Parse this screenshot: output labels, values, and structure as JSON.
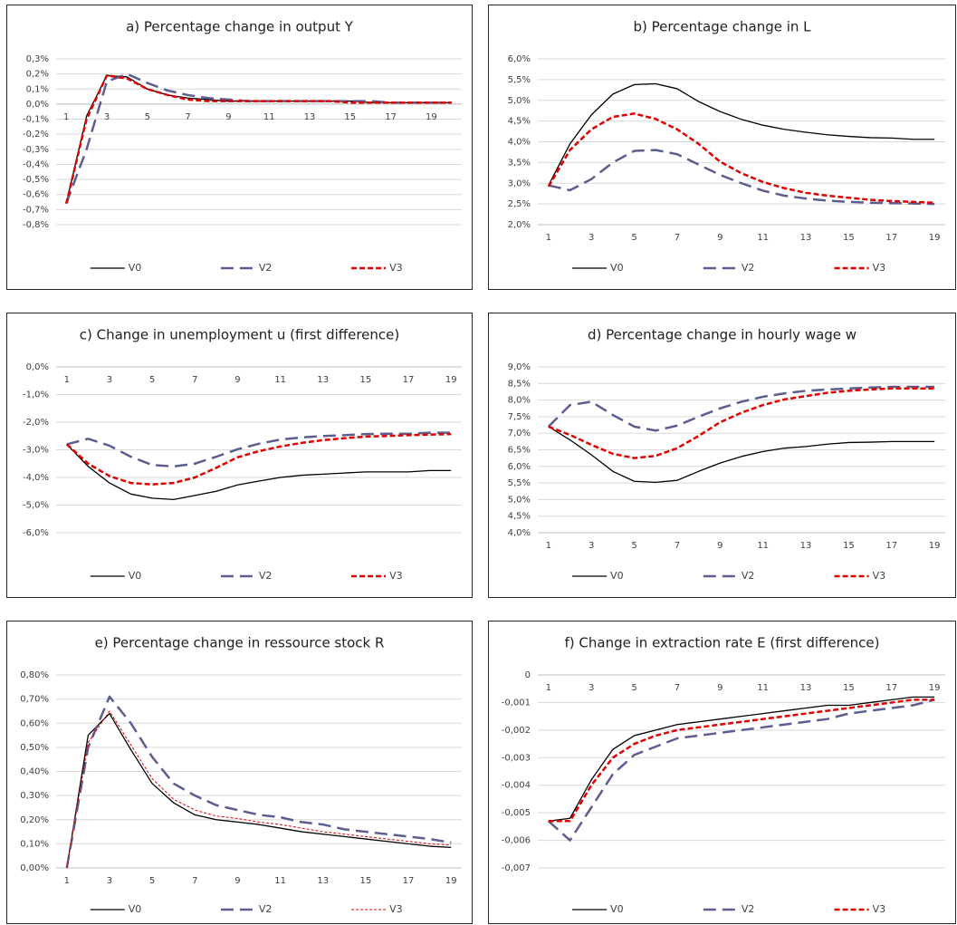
{
  "chart_data": [
    {
      "type": "line",
      "title": "a) Percentage change in output Y",
      "categories": [
        "1",
        null,
        "3",
        null,
        "5",
        null,
        "7",
        null,
        "9",
        null,
        "11",
        null,
        "13",
        null,
        "15",
        null,
        "17",
        null,
        "19",
        null
      ],
      "series": [
        {
          "name": "V0",
          "color": "#000000",
          "dash": "solid",
          "values": [
            -0.66,
            -0.08,
            0.19,
            0.18,
            0.1,
            0.06,
            0.04,
            0.03,
            0.02,
            0.02,
            0.02,
            0.02,
            0.02,
            0.02,
            0.02,
            0.01,
            0.01,
            0.01,
            0.01,
            0.01
          ]
        },
        {
          "name": "V2",
          "color": "#5b5e8e",
          "dash": "long-dash",
          "values": [
            -0.66,
            -0.3,
            0.15,
            0.2,
            0.14,
            0.09,
            0.06,
            0.04,
            0.03,
            0.02,
            0.02,
            0.02,
            0.02,
            0.02,
            0.02,
            0.02,
            0.01,
            0.01,
            0.01,
            0.01
          ]
        },
        {
          "name": "V3",
          "color": "#e00000",
          "dash": "dash",
          "values": [
            -0.66,
            -0.1,
            0.19,
            0.17,
            0.1,
            0.06,
            0.03,
            0.02,
            0.02,
            0.02,
            0.02,
            0.02,
            0.02,
            0.02,
            0.01,
            0.01,
            0.01,
            0.01,
            0.01,
            0.01
          ]
        }
      ],
      "ylim": [
        -0.8,
        0.3
      ],
      "yticks": [
        {
          "value": 0.3,
          "label": "0,3%"
        },
        {
          "value": 0.2,
          "label": "0,2%"
        },
        {
          "value": 0.1,
          "label": "0,1%"
        },
        {
          "value": 0,
          "label": "0,0%"
        },
        {
          "value": -0.1,
          "label": "-0,1%"
        },
        {
          "value": -0.2,
          "label": "-0,2%"
        },
        {
          "value": -0.3,
          "label": "-0,3%"
        },
        {
          "value": -0.4,
          "label": "-0,4%"
        },
        {
          "value": -0.5,
          "label": "-0,5%"
        },
        {
          "value": -0.6,
          "label": "-0,6%"
        },
        {
          "value": -0.7,
          "label": "-0,7%"
        },
        {
          "value": -0.8,
          "label": "-0,8%"
        }
      ],
      "grid": true,
      "legend": "bottom"
    },
    {
      "type": "line",
      "title": "b) Percentage change in L",
      "categories": [
        "1",
        null,
        "3",
        null,
        "5",
        null,
        "7",
        null,
        "9",
        null,
        "11",
        null,
        "13",
        null,
        "15",
        null,
        "17",
        null,
        "19"
      ],
      "series": [
        {
          "name": "V0",
          "color": "#000000",
          "dash": "solid",
          "values": [
            2.95,
            3.95,
            4.65,
            5.15,
            5.38,
            5.4,
            5.28,
            4.97,
            4.73,
            4.54,
            4.4,
            4.3,
            4.23,
            4.17,
            4.13,
            4.1,
            4.09,
            4.06,
            4.06
          ]
        },
        {
          "name": "V2",
          "color": "#5b5e8e",
          "dash": "long-dash",
          "values": [
            2.95,
            2.83,
            3.1,
            3.5,
            3.78,
            3.8,
            3.7,
            3.45,
            3.2,
            3.0,
            2.82,
            2.7,
            2.63,
            2.58,
            2.55,
            2.53,
            2.52,
            2.51,
            2.5
          ]
        },
        {
          "name": "V3",
          "color": "#e00000",
          "dash": "dash",
          "values": [
            2.92,
            3.8,
            4.3,
            4.6,
            4.68,
            4.55,
            4.3,
            3.95,
            3.52,
            3.24,
            3.03,
            2.88,
            2.77,
            2.7,
            2.65,
            2.6,
            2.57,
            2.55,
            2.53
          ]
        }
      ],
      "ylim": [
        2.0,
        6.0
      ],
      "yticks": [
        {
          "value": 6.0,
          "label": "6,0%"
        },
        {
          "value": 5.5,
          "label": "5,5%"
        },
        {
          "value": 5.0,
          "label": "5,0%"
        },
        {
          "value": 4.5,
          "label": "4,5%"
        },
        {
          "value": 4.0,
          "label": "4,0%"
        },
        {
          "value": 3.5,
          "label": "3,5%"
        },
        {
          "value": 3.0,
          "label": "3,0%"
        },
        {
          "value": 2.5,
          "label": "2,5%"
        },
        {
          "value": 2.0,
          "label": "2,0%"
        }
      ],
      "grid": true,
      "legend": "bottom"
    },
    {
      "type": "line",
      "title": "c) Change in unemployment u (first difference)",
      "categories": [
        "1",
        null,
        "3",
        null,
        "5",
        null,
        "7",
        null,
        "9",
        null,
        "11",
        null,
        "13",
        null,
        "15",
        null,
        "17",
        null,
        "19"
      ],
      "series": [
        {
          "name": "V0",
          "color": "#000000",
          "dash": "solid",
          "values": [
            -2.8,
            -3.6,
            -4.2,
            -4.6,
            -4.75,
            -4.8,
            -4.65,
            -4.5,
            -4.27,
            -4.13,
            -4.0,
            -3.92,
            -3.88,
            -3.84,
            -3.8,
            -3.8,
            -3.8,
            -3.75,
            -3.75
          ]
        },
        {
          "name": "V2",
          "color": "#5b5e8e",
          "dash": "long-dash",
          "values": [
            -2.8,
            -2.6,
            -2.85,
            -3.25,
            -3.55,
            -3.6,
            -3.5,
            -3.25,
            -2.98,
            -2.78,
            -2.63,
            -2.55,
            -2.5,
            -2.47,
            -2.43,
            -2.42,
            -2.42,
            -2.38,
            -2.38
          ]
        },
        {
          "name": "V3",
          "color": "#e00000",
          "dash": "dash",
          "values": [
            -2.8,
            -3.5,
            -3.95,
            -4.2,
            -4.25,
            -4.2,
            -4.0,
            -3.65,
            -3.27,
            -3.05,
            -2.88,
            -2.75,
            -2.65,
            -2.58,
            -2.52,
            -2.5,
            -2.47,
            -2.45,
            -2.43
          ]
        }
      ],
      "ylim": [
        -6,
        0
      ],
      "yticks": [
        {
          "value": 0,
          "label": "0,0%"
        },
        {
          "value": -1,
          "label": "-1,0%"
        },
        {
          "value": -2,
          "label": "-2,0%"
        },
        {
          "value": -3,
          "label": "-3,0%"
        },
        {
          "value": -4,
          "label": "-4,0%"
        },
        {
          "value": -5,
          "label": "-5,0%"
        },
        {
          "value": -6,
          "label": "-6,0%"
        }
      ],
      "grid": true,
      "legend": "bottom"
    },
    {
      "type": "line",
      "title": "d) Percentage change in hourly wage w",
      "categories": [
        "1",
        null,
        "3",
        null,
        "5",
        null,
        "7",
        null,
        "9",
        null,
        "11",
        null,
        "13",
        null,
        "15",
        null,
        "17",
        null,
        "19"
      ],
      "series": [
        {
          "name": "V0",
          "color": "#000000",
          "dash": "solid",
          "values": [
            7.2,
            6.8,
            6.35,
            5.85,
            5.55,
            5.52,
            5.58,
            5.85,
            6.1,
            6.3,
            6.45,
            6.55,
            6.6,
            6.67,
            6.72,
            6.73,
            6.75,
            6.75,
            6.75
          ]
        },
        {
          "name": "V2",
          "color": "#5b5e8e",
          "dash": "long-dash",
          "values": [
            7.2,
            7.85,
            7.95,
            7.55,
            7.2,
            7.08,
            7.23,
            7.5,
            7.75,
            7.95,
            8.1,
            8.2,
            8.28,
            8.32,
            8.35,
            8.38,
            8.4,
            8.4,
            8.4
          ]
        },
        {
          "name": "V3",
          "color": "#e00000",
          "dash": "dash",
          "values": [
            7.2,
            6.95,
            6.65,
            6.38,
            6.25,
            6.32,
            6.55,
            6.92,
            7.33,
            7.62,
            7.85,
            8.02,
            8.12,
            8.22,
            8.28,
            8.32,
            8.35,
            8.35,
            8.35
          ]
        }
      ],
      "ylim": [
        4.0,
        9.0
      ],
      "yticks": [
        {
          "value": 9.0,
          "label": "9,0%"
        },
        {
          "value": 8.5,
          "label": "8,5%"
        },
        {
          "value": 8.0,
          "label": "8,0%"
        },
        {
          "value": 7.5,
          "label": "7,5%"
        },
        {
          "value": 7.0,
          "label": "7,0%"
        },
        {
          "value": 6.5,
          "label": "6,5%"
        },
        {
          "value": 6.0,
          "label": "6,0%"
        },
        {
          "value": 5.5,
          "label": "5,5%"
        },
        {
          "value": 5.0,
          "label": "5,0%"
        },
        {
          "value": 4.5,
          "label": "4,5%"
        },
        {
          "value": 4.0,
          "label": "4,0%"
        }
      ],
      "grid": true,
      "legend": "bottom"
    },
    {
      "type": "line",
      "title": "e) Percentage change in ressource stock R",
      "categories": [
        "1",
        null,
        "3",
        null,
        "5",
        null,
        "7",
        null,
        "9",
        null,
        "11",
        null,
        "13",
        null,
        "15",
        null,
        "17",
        null,
        "19"
      ],
      "series": [
        {
          "name": "V0",
          "color": "#000000",
          "dash": "solid",
          "values": [
            0,
            0.55,
            0.64,
            0.49,
            0.35,
            0.27,
            0.22,
            0.2,
            0.19,
            0.18,
            0.165,
            0.15,
            0.14,
            0.13,
            0.12,
            0.11,
            0.1,
            0.09,
            0.085
          ]
        },
        {
          "name": "V2",
          "color": "#5b5e8e",
          "dash": "long-dash",
          "values": [
            0,
            0.5,
            0.71,
            0.6,
            0.46,
            0.35,
            0.3,
            0.26,
            0.24,
            0.22,
            0.21,
            0.19,
            0.18,
            0.16,
            0.15,
            0.14,
            0.13,
            0.12,
            0.105
          ]
        },
        {
          "name": "V3",
          "color": "#e00000",
          "dash": "fine-dash",
          "values": [
            0,
            0.52,
            0.65,
            0.51,
            0.37,
            0.285,
            0.24,
            0.215,
            0.205,
            0.19,
            0.18,
            0.165,
            0.15,
            0.14,
            0.13,
            0.12,
            0.11,
            0.1,
            0.095
          ]
        }
      ],
      "ylim": [
        0,
        0.8
      ],
      "yticks": [
        {
          "value": 0.8,
          "label": "0,80%"
        },
        {
          "value": 0.7,
          "label": "0,70%"
        },
        {
          "value": 0.6,
          "label": "0,60%"
        },
        {
          "value": 0.5,
          "label": "0,50%"
        },
        {
          "value": 0.4,
          "label": "0,40%"
        },
        {
          "value": 0.3,
          "label": "0,30%"
        },
        {
          "value": 0.2,
          "label": "0,20%"
        },
        {
          "value": 0.1,
          "label": "0,10%"
        },
        {
          "value": 0,
          "label": "0,00%"
        }
      ],
      "grid": true,
      "legend": "bottom"
    },
    {
      "type": "line",
      "title": "f) Change in extraction rate E (first difference)",
      "categories": [
        "1",
        null,
        "3",
        null,
        "5",
        null,
        "7",
        null,
        "9",
        null,
        "11",
        null,
        "13",
        null,
        "15",
        null,
        "17",
        null,
        "19"
      ],
      "series": [
        {
          "name": "V0",
          "color": "#000000",
          "dash": "solid",
          "values": [
            -0.0053,
            -0.0052,
            -0.0038,
            -0.0027,
            -0.0022,
            -0.002,
            -0.0018,
            -0.0017,
            -0.0016,
            -0.0015,
            -0.0014,
            -0.0013,
            -0.0012,
            -0.0011,
            -0.0011,
            -0.001,
            -0.0009,
            -0.0008,
            -0.0008
          ]
        },
        {
          "name": "V2",
          "color": "#5b5e8e",
          "dash": "long-dash",
          "values": [
            -0.0053,
            -0.006,
            -0.0048,
            -0.0036,
            -0.0029,
            -0.0026,
            -0.0023,
            -0.0022,
            -0.0021,
            -0.002,
            -0.0019,
            -0.0018,
            -0.0017,
            -0.0016,
            -0.0014,
            -0.0013,
            -0.0012,
            -0.0011,
            -0.0009
          ]
        },
        {
          "name": "V3",
          "color": "#e00000",
          "dash": "dash",
          "values": [
            -0.0053,
            -0.0053,
            -0.004,
            -0.003,
            -0.0025,
            -0.0022,
            -0.002,
            -0.0019,
            -0.0018,
            -0.0017,
            -0.0016,
            -0.0015,
            -0.0014,
            -0.0013,
            -0.0012,
            -0.0011,
            -0.001,
            -0.0009,
            -0.0009
          ]
        }
      ],
      "ylim": [
        -0.007,
        0
      ],
      "yticks": [
        0,
        {
          "value": -0.001,
          "label": "-0,001"
        },
        {
          "value": -0.002,
          "label": "-0,002"
        },
        {
          "value": -0.003,
          "label": "-0,003"
        },
        {
          "value": -0.004,
          "label": "-0,004"
        },
        {
          "value": -0.005,
          "label": "-0,005"
        },
        {
          "value": -0.006,
          "label": "-0,006"
        },
        {
          "value": -0.007,
          "label": "-0,007"
        }
      ],
      "grid": true,
      "legend": "bottom"
    }
  ]
}
